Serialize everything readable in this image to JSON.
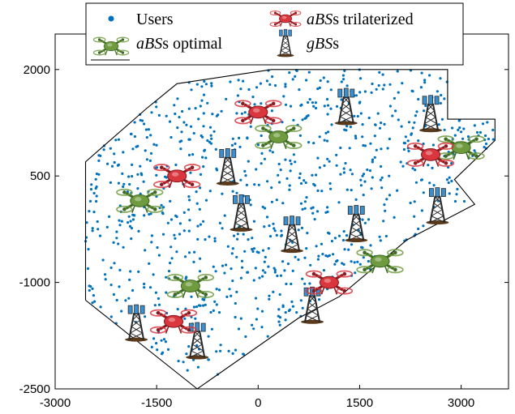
{
  "chart_data": {
    "type": "scatter",
    "title": "",
    "xlabel": "",
    "ylabel": "",
    "xlim": [
      -3000,
      3700
    ],
    "ylim": [
      -2500,
      2500
    ],
    "xticks": [
      -3000,
      -1500,
      0,
      1500,
      3000
    ],
    "yticks": [
      2000,
      500,
      -1000,
      -2500
    ],
    "xtick_labels": [
      "-3000",
      "-1500",
      "0",
      "1500",
      "3000"
    ],
    "ytick_labels": [
      "2000",
      "500",
      "-1000",
      "-2500"
    ],
    "grid": false,
    "legend_position": "top",
    "legend": [
      {
        "label": "Users",
        "marker": "dot"
      },
      {
        "label_italic": "aBS",
        "label_rest": "s trilaterized",
        "marker": "red-drone"
      },
      {
        "label_italic": "aBS",
        "label_rest": "s optimal",
        "marker": "green-drone"
      },
      {
        "label_italic": "gBS",
        "label_rest": "s",
        "marker": "tower"
      }
    ],
    "colors": {
      "users": "#0072BD",
      "boundary": "#000000",
      "abs_trilaterized": "#d9363e",
      "abs_optimal": "#6f9b3e",
      "gbs": "#2a2a2a"
    },
    "boundary": [
      [
        -2550,
        -1250
      ],
      [
        -2550,
        700
      ],
      [
        -1650,
        1450
      ],
      [
        -1200,
        1800
      ],
      [
        200,
        2000
      ],
      [
        2800,
        2000
      ],
      [
        2800,
        1300
      ],
      [
        3500,
        1300
      ],
      [
        3500,
        1000
      ],
      [
        2900,
        450
      ],
      [
        3200,
        100
      ],
      [
        2200,
        -400
      ],
      [
        1200,
        -1200
      ],
      [
        600,
        -1500
      ],
      [
        -900,
        -2500
      ],
      [
        -2550,
        -1250
      ]
    ],
    "gbs": [
      [
        -1800,
        -1600
      ],
      [
        -900,
        -1850
      ],
      [
        -450,
        600
      ],
      [
        -250,
        -50
      ],
      [
        500,
        -350
      ],
      [
        800,
        -1350
      ],
      [
        1300,
        1450
      ],
      [
        1450,
        -200
      ],
      [
        2550,
        1350
      ],
      [
        2650,
        50
      ]
    ],
    "abs_trilaterized": [
      [
        -1200,
        500
      ],
      [
        -1250,
        -1550
      ],
      [
        0,
        1400
      ],
      [
        1050,
        -1000
      ],
      [
        2550,
        800
      ]
    ],
    "abs_optimal": [
      [
        -1750,
        150
      ],
      [
        -1000,
        -1050
      ],
      [
        300,
        1050
      ],
      [
        1800,
        -700
      ],
      [
        3000,
        900
      ]
    ],
    "users_count": 900
  }
}
